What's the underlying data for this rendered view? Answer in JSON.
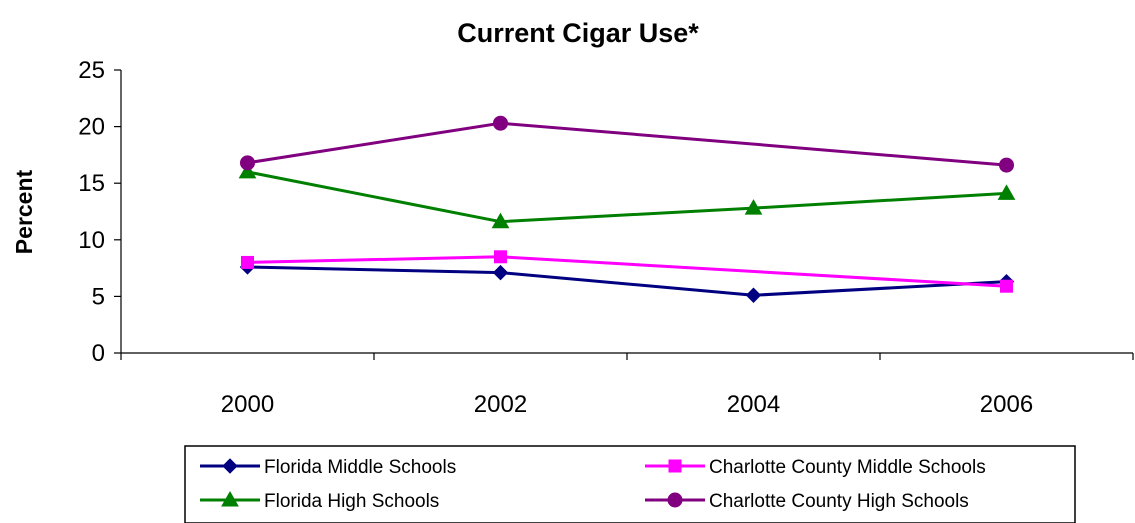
{
  "chart_data": {
    "type": "line",
    "title": "Current Cigar Use*",
    "ylabel": "Percent",
    "xlabel": "",
    "categories": [
      "2000",
      "2002",
      "2004",
      "2006"
    ],
    "ylim": [
      0,
      25
    ],
    "yticks": [
      "0",
      "5",
      "10",
      "15",
      "20",
      "25"
    ],
    "grid": false,
    "legend_position": "bottom",
    "series": [
      {
        "name": "Florida Middle Schools",
        "values": [
          7.6,
          7.1,
          5.1,
          6.3
        ],
        "color": "#000080",
        "marker": "diamond"
      },
      {
        "name": "Charlotte County Middle Schools",
        "values": [
          8.0,
          8.5,
          null,
          5.9
        ],
        "color": "#FF00FF",
        "marker": "square"
      },
      {
        "name": "Florida High Schools",
        "values": [
          16.0,
          11.6,
          12.8,
          14.1
        ],
        "color": "#008000",
        "marker": "triangle"
      },
      {
        "name": "Charlotte County High Schools",
        "values": [
          16.8,
          20.3,
          null,
          16.6
        ],
        "color": "#800080",
        "marker": "circle"
      }
    ]
  }
}
